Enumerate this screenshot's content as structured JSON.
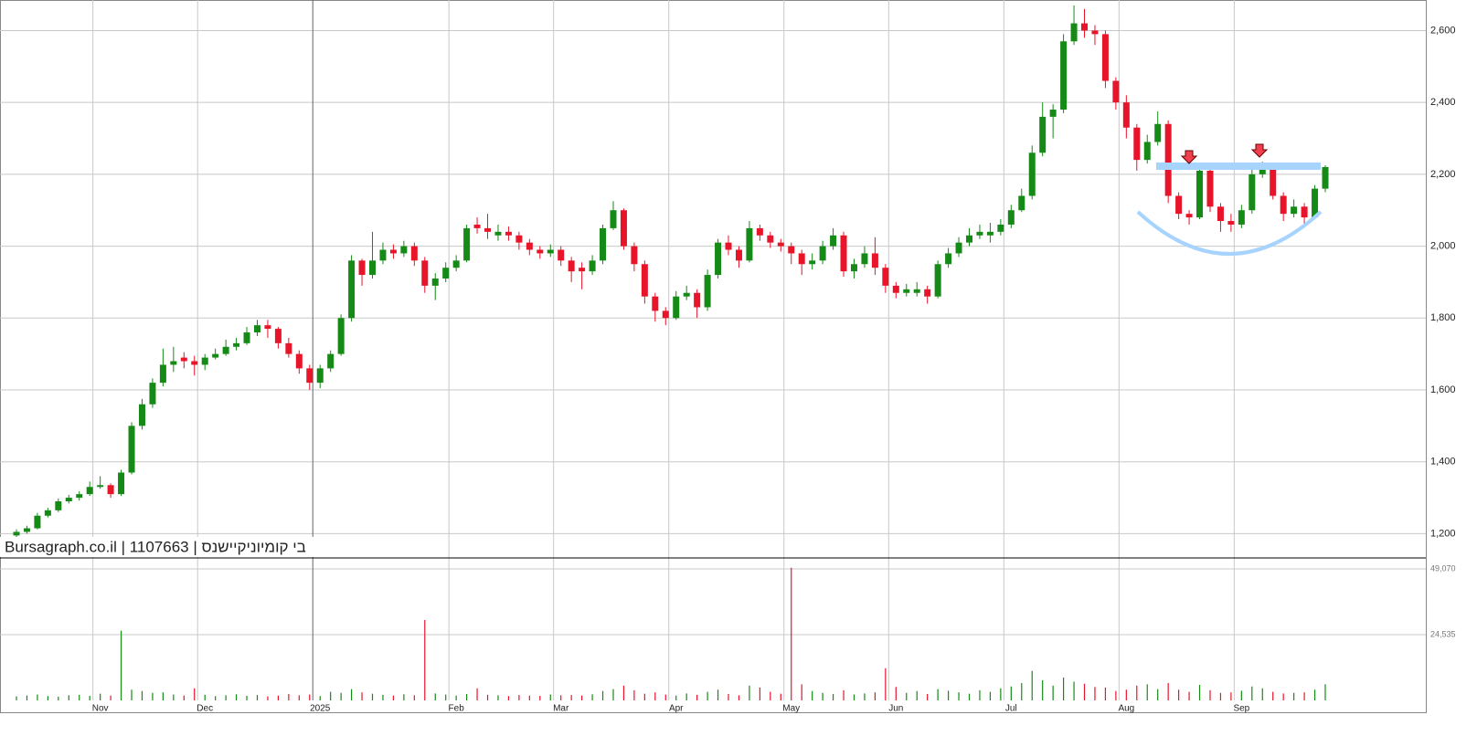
{
  "chart_data": [
    {
      "type": "candlestick",
      "watermark": "Bursagraph.co.il | 1107663 | בי קומיוניקיישנס",
      "categories": [
        null,
        null,
        null,
        null,
        null,
        null,
        null,
        null,
        "Nov",
        null,
        null,
        null,
        null,
        null,
        null,
        null,
        null,
        null,
        "Dec",
        null,
        null,
        null,
        null,
        null,
        null,
        null,
        null,
        null,
        null,
        "2025",
        null,
        null,
        null,
        null,
        null,
        null,
        null,
        null,
        null,
        null,
        null,
        null,
        "Feb",
        null,
        null,
        null,
        null,
        null,
        null,
        null,
        null,
        null,
        "Mar",
        null,
        null,
        null,
        null,
        null,
        null,
        null,
        null,
        null,
        null,
        "Apr",
        null,
        null,
        null,
        null,
        null,
        null,
        null,
        null,
        null,
        null,
        "May",
        null,
        null,
        null,
        null,
        null,
        null,
        null,
        null,
        null,
        "Jun",
        null,
        null,
        null,
        null,
        null,
        null,
        null,
        null,
        null,
        null,
        "Jul",
        null,
        null,
        null,
        null,
        null,
        null,
        null,
        null,
        null,
        null,
        "Aug",
        null,
        null,
        null,
        null,
        null,
        null,
        null,
        null,
        null,
        null,
        "Sep",
        null,
        null,
        null,
        null,
        null,
        null,
        null,
        null
      ],
      "open": [
        1195,
        1205,
        1215,
        1250,
        1265,
        1290,
        1300,
        1310,
        1330,
        1335,
        1310,
        1370,
        1500,
        1560,
        1620,
        1670,
        1690,
        1680,
        1670,
        1690,
        1700,
        1720,
        1730,
        1760,
        1780,
        1770,
        1730,
        1700,
        1660,
        1620,
        1660,
        1700,
        1800,
        1960,
        1920,
        1960,
        1990,
        1980,
        2000,
        1960,
        1890,
        1910,
        1940,
        1960,
        2060,
        2050,
        2030,
        2040,
        2030,
        2010,
        1990,
        1980,
        1990,
        1960,
        1940,
        1930,
        1960,
        2050,
        2100,
        2000,
        1950,
        1860,
        1820,
        1800,
        1860,
        1870,
        1830,
        1920,
        2010,
        1990,
        1960,
        2050,
        2030,
        2010,
        2000,
        1980,
        1950,
        1960,
        2000,
        2030,
        1930,
        1950,
        1980,
        1940,
        1890,
        1870,
        1870,
        1880,
        1860,
        1950,
        1980,
        2010,
        2030,
        2030,
        2040,
        2060,
        2100,
        2140,
        2260,
        2360,
        2380,
        2570,
        2620,
        2600,
        2590,
        2460,
        2400,
        2330,
        2240,
        2290,
        2340,
        2140,
        2090,
        2080,
        2210,
        2110,
        2070,
        2060,
        2100,
        2200,
        2220,
        2140,
        2090,
        2110,
        2080,
        2160
      ],
      "high": [
        1212,
        1222,
        1258,
        1272,
        1298,
        1308,
        1318,
        1345,
        1360,
        1340,
        1378,
        1510,
        1575,
        1632,
        1715,
        1720,
        1705,
        1695,
        1700,
        1715,
        1740,
        1745,
        1775,
        1795,
        1795,
        1775,
        1745,
        1710,
        1670,
        1670,
        1710,
        1810,
        1975,
        1965,
        2040,
        2010,
        2005,
        2015,
        2010,
        1970,
        1925,
        1955,
        1975,
        2060,
        2080,
        2090,
        2060,
        2055,
        2040,
        2020,
        2000,
        2005,
        2000,
        1970,
        1955,
        1975,
        2060,
        2125,
        2105,
        2010,
        1960,
        1870,
        1830,
        1875,
        1890,
        1880,
        1935,
        2020,
        2030,
        2000,
        2070,
        2060,
        2040,
        2020,
        2010,
        1990,
        1980,
        2015,
        2050,
        2040,
        1965,
        2000,
        2025,
        1950,
        1900,
        1895,
        1900,
        1890,
        1960,
        1995,
        2025,
        2050,
        2060,
        2065,
        2075,
        2115,
        2160,
        2280,
        2400,
        2395,
        2590,
        2670,
        2660,
        2615,
        2600,
        2470,
        2420,
        2340,
        2310,
        2375,
        2350,
        2150,
        2100,
        2225,
        2215,
        2120,
        2090,
        2115,
        2225,
        2235,
        2225,
        2150,
        2130,
        2120,
        2170,
        2225
      ],
      "low": [
        1190,
        1200,
        1212,
        1245,
        1260,
        1284,
        1292,
        1305,
        1325,
        1300,
        1305,
        1365,
        1490,
        1550,
        1610,
        1650,
        1660,
        1640,
        1655,
        1685,
        1695,
        1710,
        1725,
        1750,
        1745,
        1715,
        1690,
        1645,
        1600,
        1605,
        1650,
        1695,
        1790,
        1890,
        1910,
        1950,
        1965,
        1970,
        1945,
        1870,
        1850,
        1900,
        1930,
        1955,
        2035,
        2020,
        2015,
        2015,
        1990,
        1975,
        1965,
        1970,
        1945,
        1900,
        1880,
        1920,
        1950,
        2045,
        1990,
        1930,
        1840,
        1790,
        1780,
        1795,
        1850,
        1800,
        1820,
        1910,
        1975,
        1940,
        1955,
        2015,
        1995,
        1985,
        1950,
        1920,
        1935,
        1950,
        1990,
        1915,
        1910,
        1940,
        1920,
        1870,
        1855,
        1860,
        1860,
        1840,
        1855,
        1940,
        1970,
        2000,
        2020,
        2010,
        2030,
        2050,
        2095,
        2130,
        2250,
        2300,
        2370,
        2560,
        2580,
        2560,
        2440,
        2380,
        2300,
        2210,
        2230,
        2280,
        2120,
        2075,
        2060,
        2075,
        2095,
        2040,
        2040,
        2050,
        2090,
        2190,
        2130,
        2070,
        2080,
        2060,
        2075,
        2150
      ],
      "close": [
        1205,
        1215,
        1250,
        1265,
        1290,
        1300,
        1310,
        1330,
        1335,
        1310,
        1370,
        1500,
        1560,
        1620,
        1670,
        1680,
        1680,
        1670,
        1690,
        1700,
        1720,
        1730,
        1760,
        1780,
        1770,
        1730,
        1700,
        1660,
        1620,
        1660,
        1700,
        1800,
        1960,
        1920,
        1960,
        1990,
        1980,
        2000,
        1960,
        1890,
        1910,
        1940,
        1960,
        2050,
        2050,
        2040,
        2040,
        2030,
        2010,
        1990,
        1980,
        1990,
        1960,
        1930,
        1930,
        1960,
        2050,
        2100,
        2000,
        1950,
        1860,
        1820,
        1800,
        1860,
        1870,
        1830,
        1920,
        2010,
        1990,
        1960,
        2050,
        2030,
        2010,
        2000,
        1980,
        1950,
        1960,
        2000,
        2030,
        1930,
        1950,
        1980,
        1940,
        1890,
        1870,
        1880,
        1880,
        1860,
        1950,
        1980,
        2010,
        2030,
        2040,
        2040,
        2060,
        2100,
        2140,
        2260,
        2360,
        2380,
        2570,
        2620,
        2600,
        2590,
        2460,
        2400,
        2330,
        2240,
        2290,
        2340,
        2140,
        2090,
        2080,
        2210,
        2110,
        2070,
        2060,
        2100,
        2200,
        2220,
        2140,
        2090,
        2110,
        2080,
        2160,
        2220
      ],
      "up_color": "#168a16",
      "down_color": "#e8142a",
      "ylim": [
        1135,
        2685
      ],
      "yticks": [
        {
          "value": 1200,
          "label": "1,200"
        },
        {
          "value": 1400,
          "label": "1,400"
        },
        {
          "value": 1600,
          "label": "1,600"
        },
        {
          "value": 1800,
          "label": "1,800"
        },
        {
          "value": 2000,
          "label": "2,000"
        },
        {
          "value": 2200,
          "label": "2,200"
        },
        {
          "value": 2400,
          "label": "2,400"
        },
        {
          "value": 2600,
          "label": "2,600"
        }
      ],
      "grid": true
    },
    {
      "type": "bar",
      "values": [
        1500,
        1800,
        2200,
        1600,
        1400,
        1900,
        2100,
        1700,
        2500,
        1800,
        26000,
        4000,
        3500,
        2800,
        3000,
        2200,
        1800,
        4500,
        2100,
        1600,
        1900,
        2300,
        1700,
        2000,
        1500,
        1800,
        2400,
        1900,
        2200,
        1600,
        3200,
        2800,
        4200,
        3000,
        2500,
        2100,
        1800,
        2300,
        1900,
        30000,
        2600,
        2200,
        1800,
        2400,
        4500,
        2100,
        1900,
        1600,
        2000,
        1800,
        1700,
        2200,
        1900,
        2000,
        1800,
        2300,
        3500,
        4200,
        5500,
        3800,
        2500,
        3000,
        2200,
        1800,
        2600,
        2100,
        3200,
        4000,
        2400,
        1900,
        5500,
        4800,
        3200,
        2500,
        49500,
        6000,
        3500,
        2800,
        2400,
        3800,
        2200,
        2600,
        3000,
        12000,
        5000,
        2800,
        3500,
        2400,
        4200,
        3600,
        3000,
        2500,
        3800,
        3200,
        4500,
        5200,
        6500,
        11000,
        7500,
        5500,
        8500,
        7000,
        6200,
        5000,
        4800,
        3500,
        4000,
        5500,
        6000,
        4200,
        6500,
        4000,
        3200,
        5800,
        3800,
        2800,
        3000,
        3600,
        5200,
        4500,
        3200,
        2600,
        2800,
        3000,
        4000,
        6000
      ],
      "ylim": [
        0,
        52800
      ],
      "yticks": [
        {
          "value": 24535,
          "label": "24,535"
        },
        {
          "value": 49070,
          "label": "49,070"
        }
      ],
      "grid": true
    }
  ]
}
